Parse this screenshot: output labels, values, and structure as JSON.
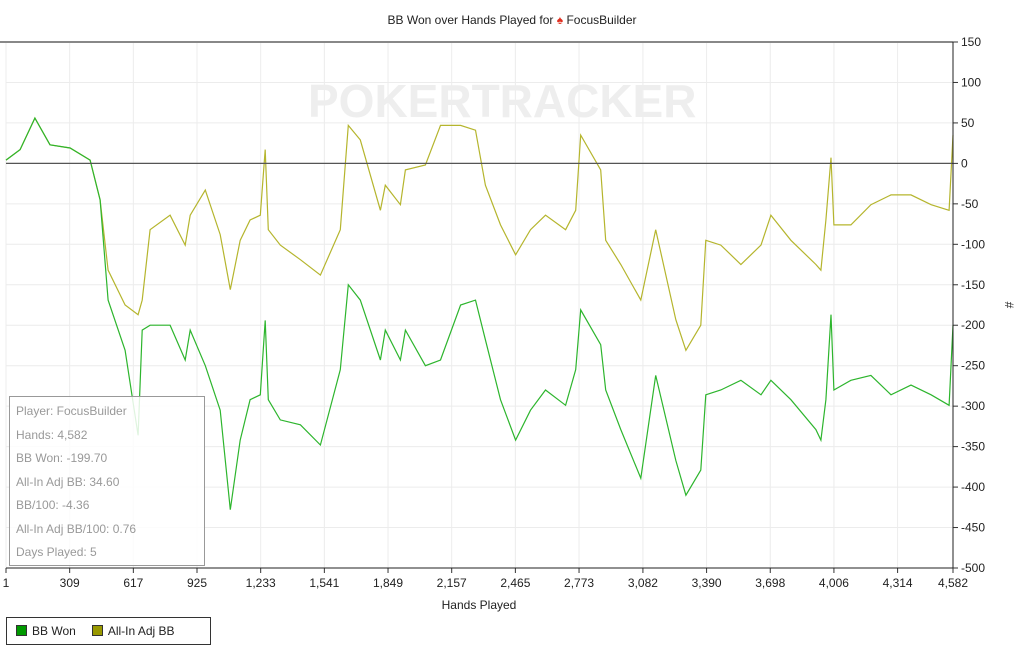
{
  "chart_data": {
    "type": "line",
    "title": "BB Won over Hands Played for",
    "title_player": "FocusBuilder",
    "title_icon": "pokerstars-spade-icon",
    "watermark": "POKERTRACKER",
    "xlabel": "Hands Played",
    "ylabel": "#",
    "xlim": [
      1,
      4582
    ],
    "ylim": [
      -500,
      150
    ],
    "grid": true,
    "x_ticks": [
      "1",
      "309",
      "617",
      "925",
      "1,233",
      "1,541",
      "1,849",
      "2,157",
      "2,465",
      "2,773",
      "3,082",
      "3,390",
      "3,698",
      "4,006",
      "4,314",
      "4,582"
    ],
    "x_tick_values": [
      1,
      309,
      617,
      925,
      1233,
      1541,
      1849,
      2157,
      2465,
      2773,
      3082,
      3390,
      3698,
      4006,
      4314,
      4582
    ],
    "y_ticks": [
      150,
      100,
      50,
      0,
      -50,
      -100,
      -150,
      -200,
      -250,
      -300,
      -350,
      -400,
      -450,
      -500
    ],
    "legend_position": "bottom-left",
    "x": [
      1,
      69,
      141,
      214,
      311,
      408,
      456,
      495,
      577,
      640,
      660,
      698,
      795,
      868,
      892,
      965,
      1037,
      1086,
      1134,
      1182,
      1231,
      1255,
      1270,
      1328,
      1425,
      1522,
      1618,
      1657,
      1715,
      1812,
      1836,
      1909,
      1933,
      2030,
      2103,
      2200,
      2272,
      2320,
      2393,
      2466,
      2538,
      2611,
      2708,
      2757,
      2781,
      2878,
      2902,
      2975,
      3072,
      3144,
      3241,
      3290,
      3362,
      3386,
      3459,
      3556,
      3653,
      3701,
      3798,
      3919,
      3943,
      3967,
      3992,
      4006,
      4088,
      4185,
      4282,
      4379,
      4476,
      4563,
      4582
    ],
    "series": [
      {
        "name": "BB Won",
        "color": "#2db52d",
        "swatch": "#009900",
        "values": [
          4,
          17,
          56,
          23,
          19,
          4,
          -45,
          -169,
          -231,
          -336,
          -206,
          -200,
          -200,
          -243,
          -206,
          -250,
          -305,
          -428,
          -342,
          -292,
          -286,
          -194,
          -292,
          -317,
          -323,
          -348,
          -255,
          -150,
          -169,
          -243,
          -206,
          -243,
          -206,
          -250,
          -243,
          -175,
          -169,
          -218,
          -292,
          -342,
          -305,
          -280,
          -299,
          -255,
          -181,
          -224,
          -280,
          -329,
          -389,
          -262,
          -367,
          -410,
          -379,
          -286,
          -280,
          -268,
          -286,
          -268,
          -292,
          -329,
          -342,
          -292,
          -187,
          -280,
          -268,
          -262,
          -286,
          -274,
          -286,
          -299,
          -200
        ]
      },
      {
        "name": "All-In Adj BB",
        "color": "#b5b52d",
        "swatch": "#999900",
        "values": [
          4,
          17,
          56,
          23,
          19,
          4,
          -45,
          -132,
          -175,
          -187,
          -169,
          -82,
          -64,
          -101,
          -64,
          -33,
          -88,
          -156,
          -95,
          -70,
          -64,
          17,
          -82,
          -101,
          -119,
          -138,
          -82,
          47,
          29,
          -58,
          -27,
          -51,
          -8,
          -2,
          47,
          47,
          41,
          -27,
          -76,
          -113,
          -82,
          -64,
          -82,
          -58,
          35,
          -8,
          -95,
          -125,
          -169,
          -82,
          -193,
          -231,
          -200,
          -95,
          -101,
          -125,
          -101,
          -64,
          -95,
          -125,
          -132,
          -70,
          7,
          -76,
          -76,
          -51,
          -39,
          -39,
          -51,
          -58,
          35
        ]
      }
    ],
    "info_box": [
      "Player: FocusBuilder",
      "Hands: 4,582",
      "BB Won: -199.70",
      "All-In Adj BB: 34.60",
      "BB/100: -4.36",
      "All-In Adj BB/100: 0.76",
      "Days Played: 5"
    ]
  }
}
